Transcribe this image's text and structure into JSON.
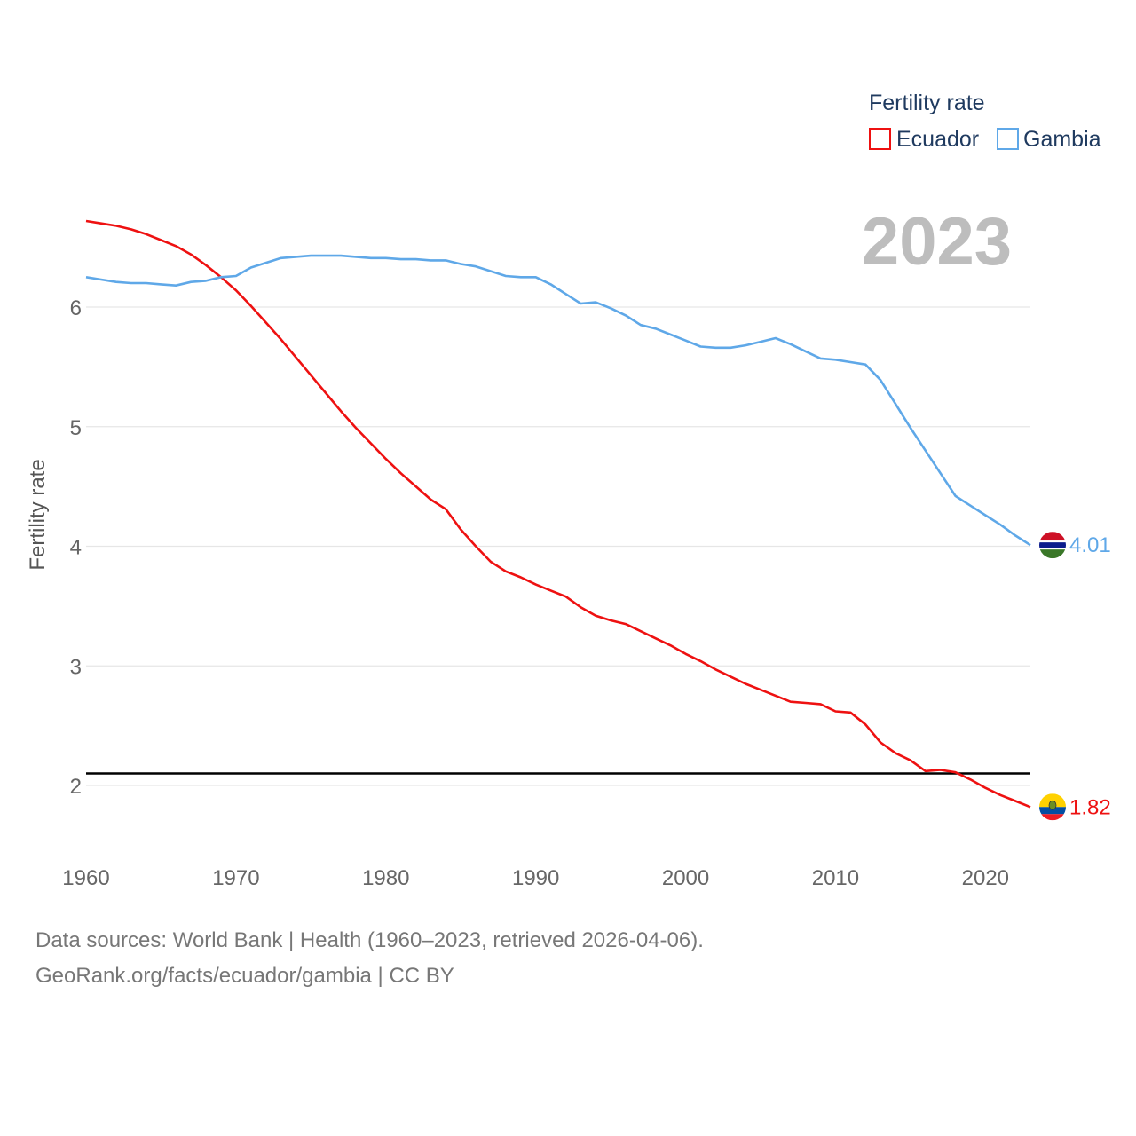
{
  "chart_data": {
    "type": "line",
    "title": "",
    "xlabel": "",
    "ylabel": "Fertility rate",
    "xlim": [
      1960,
      2023
    ],
    "ylim": [
      1.5,
      7.0
    ],
    "x_ticks": [
      1960,
      1970,
      1980,
      1990,
      2000,
      2010,
      2020
    ],
    "y_ticks": [
      2,
      3,
      4,
      5,
      6
    ],
    "grid": true,
    "reference_line": 2.1,
    "year_label": "2023",
    "legend": {
      "title": "Fertility rate",
      "position": "top-right"
    },
    "x": [
      1960,
      1961,
      1962,
      1963,
      1964,
      1965,
      1966,
      1967,
      1968,
      1969,
      1970,
      1971,
      1972,
      1973,
      1974,
      1975,
      1976,
      1977,
      1978,
      1979,
      1980,
      1981,
      1982,
      1983,
      1984,
      1985,
      1986,
      1987,
      1988,
      1989,
      1990,
      1991,
      1992,
      1993,
      1994,
      1995,
      1996,
      1997,
      1998,
      1999,
      2000,
      2001,
      2002,
      2003,
      2004,
      2005,
      2006,
      2007,
      2008,
      2009,
      2010,
      2011,
      2012,
      2013,
      2014,
      2015,
      2016,
      2017,
      2018,
      2019,
      2020,
      2021,
      2022,
      2023
    ],
    "series": [
      {
        "name": "Ecuador",
        "color": "#ee1111",
        "end_label": "1.82",
        "values": [
          6.72,
          6.7,
          6.68,
          6.65,
          6.61,
          6.56,
          6.51,
          6.44,
          6.35,
          6.25,
          6.14,
          6.01,
          5.87,
          5.73,
          5.58,
          5.43,
          5.28,
          5.13,
          4.99,
          4.86,
          4.73,
          4.61,
          4.5,
          4.39,
          4.31,
          4.14,
          4.0,
          3.87,
          3.79,
          3.74,
          3.68,
          3.63,
          3.58,
          3.49,
          3.42,
          3.38,
          3.35,
          3.29,
          3.23,
          3.17,
          3.1,
          3.04,
          2.97,
          2.91,
          2.85,
          2.8,
          2.75,
          2.7,
          2.69,
          2.68,
          2.62,
          2.61,
          2.51,
          2.36,
          2.27,
          2.21,
          2.12,
          2.13,
          2.11,
          2.05,
          1.98,
          1.92,
          1.87,
          1.82
        ]
      },
      {
        "name": "Gambia",
        "color": "#5fa8e8",
        "end_label": "4.01",
        "values": [
          6.25,
          6.23,
          6.21,
          6.2,
          6.2,
          6.19,
          6.18,
          6.21,
          6.22,
          6.25,
          6.26,
          6.33,
          6.37,
          6.41,
          6.42,
          6.43,
          6.43,
          6.43,
          6.42,
          6.41,
          6.41,
          6.4,
          6.4,
          6.39,
          6.39,
          6.36,
          6.34,
          6.3,
          6.26,
          6.25,
          6.25,
          6.19,
          6.11,
          6.03,
          6.04,
          5.99,
          5.93,
          5.85,
          5.82,
          5.77,
          5.72,
          5.67,
          5.66,
          5.66,
          5.68,
          5.71,
          5.74,
          5.69,
          5.63,
          5.57,
          5.56,
          5.54,
          5.52,
          5.39,
          5.19,
          4.99,
          4.8,
          4.61,
          4.42,
          4.34,
          4.26,
          4.18,
          4.09,
          4.01
        ]
      }
    ]
  },
  "footer": {
    "line1": "Data sources: World Bank | Health (1960–2023, retrieved 2026-04-06).",
    "line2": "GeoRank.org/facts/ecuador/gambia | CC BY"
  },
  "flags": {
    "Ecuador": "ecuador-flag-icon",
    "Gambia": "gambia-flag-icon"
  }
}
